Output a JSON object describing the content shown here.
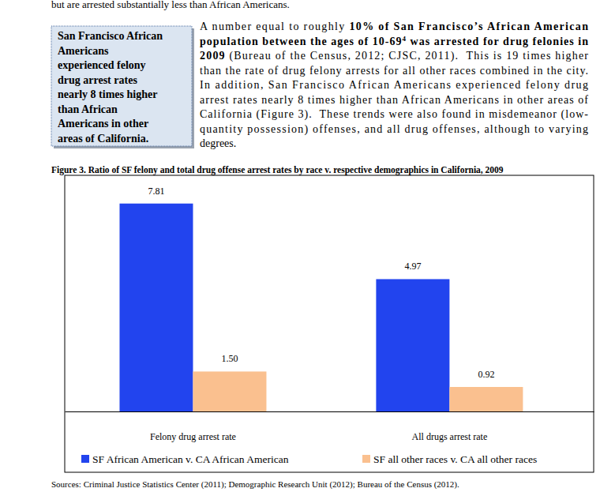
{
  "document": {
    "top_text": "but are arrested substantially less than African Americans.",
    "sidebar": [
      "San Francisco African",
      "Americans",
      "experienced felony",
      "drug arrest rates",
      "nearly 8 times higher",
      "than African",
      "Americans in other",
      "areas of California."
    ],
    "paragraph": [
      [
        {
          "text": "A number equal to roughly ",
          "style": "normal"
        },
        {
          "text": "10% of San Francisco’s African American",
          "style": "bold"
        }
      ],
      [
        {
          "text": "population between the ages of 10-69",
          "style": "bold"
        },
        {
          "text": "4",
          "style": "sup"
        },
        {
          "text": " was arrested for drug felonies in",
          "style": "bold"
        }
      ],
      [
        {
          "text": "2009",
          "style": "bold"
        },
        {
          "text": " (Bureau of the Census, 2012; CJSC, 2011).  This is 19 times higher",
          "style": "normal"
        }
      ],
      [
        {
          "text": "than the rate of drug felony arrests for all other races combined in the city.",
          "style": "normal"
        }
      ],
      [
        {
          "text": "In addition, San Francisco African Americans experienced felony drug",
          "style": "normal"
        }
      ],
      [
        {
          "text": "arrest rates nearly 8 times higher than African Americans in other areas of",
          "style": "normal"
        }
      ],
      [
        {
          "text": "California (Figure 3).  These trends were also found in misdemeanor (low-",
          "style": "normal"
        }
      ],
      [
        {
          "text": "quantity possession) offenses, and all drug offenses, although to varying",
          "style": "normal"
        }
      ],
      [
        {
          "text": "degrees.",
          "style": "normal"
        }
      ]
    ],
    "sources": "Sources: Criminal Justice Statistics Center (2011); Demographic Research Unit (2012); Bureau of the Census (2012)."
  },
  "chart_data": {
    "type": "bar",
    "title": "Figure 3. Ratio of SF felony and total drug offense arrest rates by race v. respective demographics in California, 2009",
    "categories": [
      "Felony drug arrest rate",
      "All drugs arrest rate"
    ],
    "series": [
      {
        "name": "SF African American v. CA African American",
        "color": "#2244ee",
        "values": [
          7.81,
          4.97
        ],
        "value_labels": [
          "7.81",
          "4.97"
        ]
      },
      {
        "name": "SF all other races v. CA all other races",
        "color": "#fac08f",
        "values": [
          1.5,
          0.92
        ],
        "value_labels": [
          "1.50",
          "0.92"
        ]
      }
    ],
    "ylim": [
      0,
      8.87
    ],
    "yticks": [],
    "data_labels": true,
    "tick_labels": "x",
    "legend": "bottom"
  }
}
